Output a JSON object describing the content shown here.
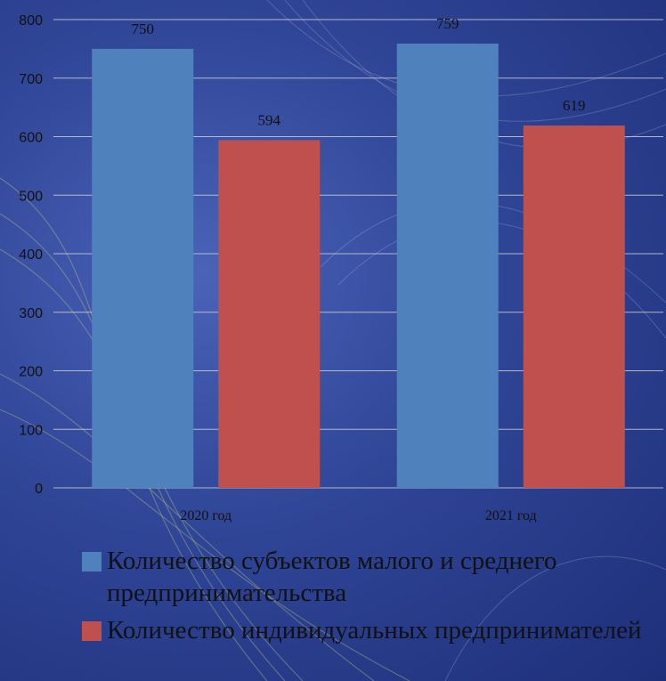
{
  "chart_data": {
    "type": "bar",
    "categories": [
      "2020 год",
      "2021 год"
    ],
    "series": [
      {
        "name": "Количество субъектов малого и среднего предпринимательства",
        "values": [
          750,
          759
        ],
        "color": "#4f81bd"
      },
      {
        "name": "Количество индивидуальных предпринимателей",
        "values": [
          594,
          619
        ],
        "color": "#c0504d"
      }
    ],
    "ylim": [
      0,
      800
    ],
    "yticks": [
      0,
      100,
      200,
      300,
      400,
      500,
      600,
      700,
      800
    ],
    "grid": true,
    "legend_position": "bottom",
    "title": "",
    "xlabel": "",
    "ylabel": ""
  }
}
